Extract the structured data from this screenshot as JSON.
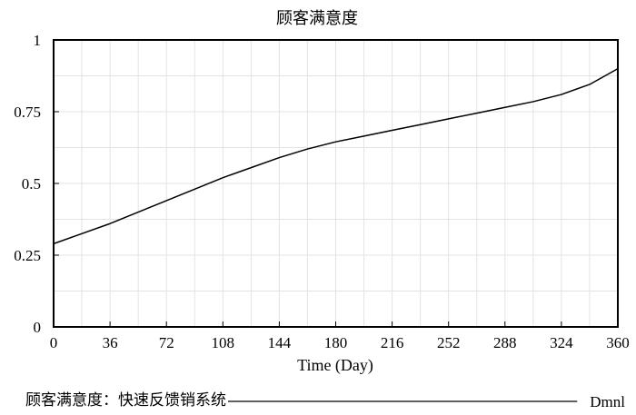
{
  "chart_data": {
    "type": "line",
    "title": "顾客满意度",
    "xlabel": "Time (Day)",
    "ylabel": "",
    "xlim": [
      0,
      360
    ],
    "ylim": [
      0,
      1
    ],
    "x_ticks": [
      "0",
      "36",
      "72",
      "108",
      "144",
      "180",
      "216",
      "252",
      "288",
      "324",
      "360"
    ],
    "y_ticks": [
      "0",
      "0.25",
      "0.5",
      "0.75",
      "1"
    ],
    "grid": true,
    "legend_position": "bottom",
    "series": [
      {
        "name": "顾客满意度：快速反馈销系统",
        "unit": "Dmnl",
        "color": "#000000",
        "x": [
          0,
          18,
          36,
          54,
          72,
          90,
          108,
          126,
          144,
          162,
          180,
          198,
          216,
          234,
          252,
          270,
          288,
          306,
          324,
          342,
          360
        ],
        "y": [
          0.29,
          0.325,
          0.36,
          0.4,
          0.44,
          0.48,
          0.52,
          0.555,
          0.59,
          0.62,
          0.645,
          0.665,
          0.685,
          0.705,
          0.725,
          0.745,
          0.765,
          0.785,
          0.81,
          0.845,
          0.9
        ]
      }
    ]
  }
}
